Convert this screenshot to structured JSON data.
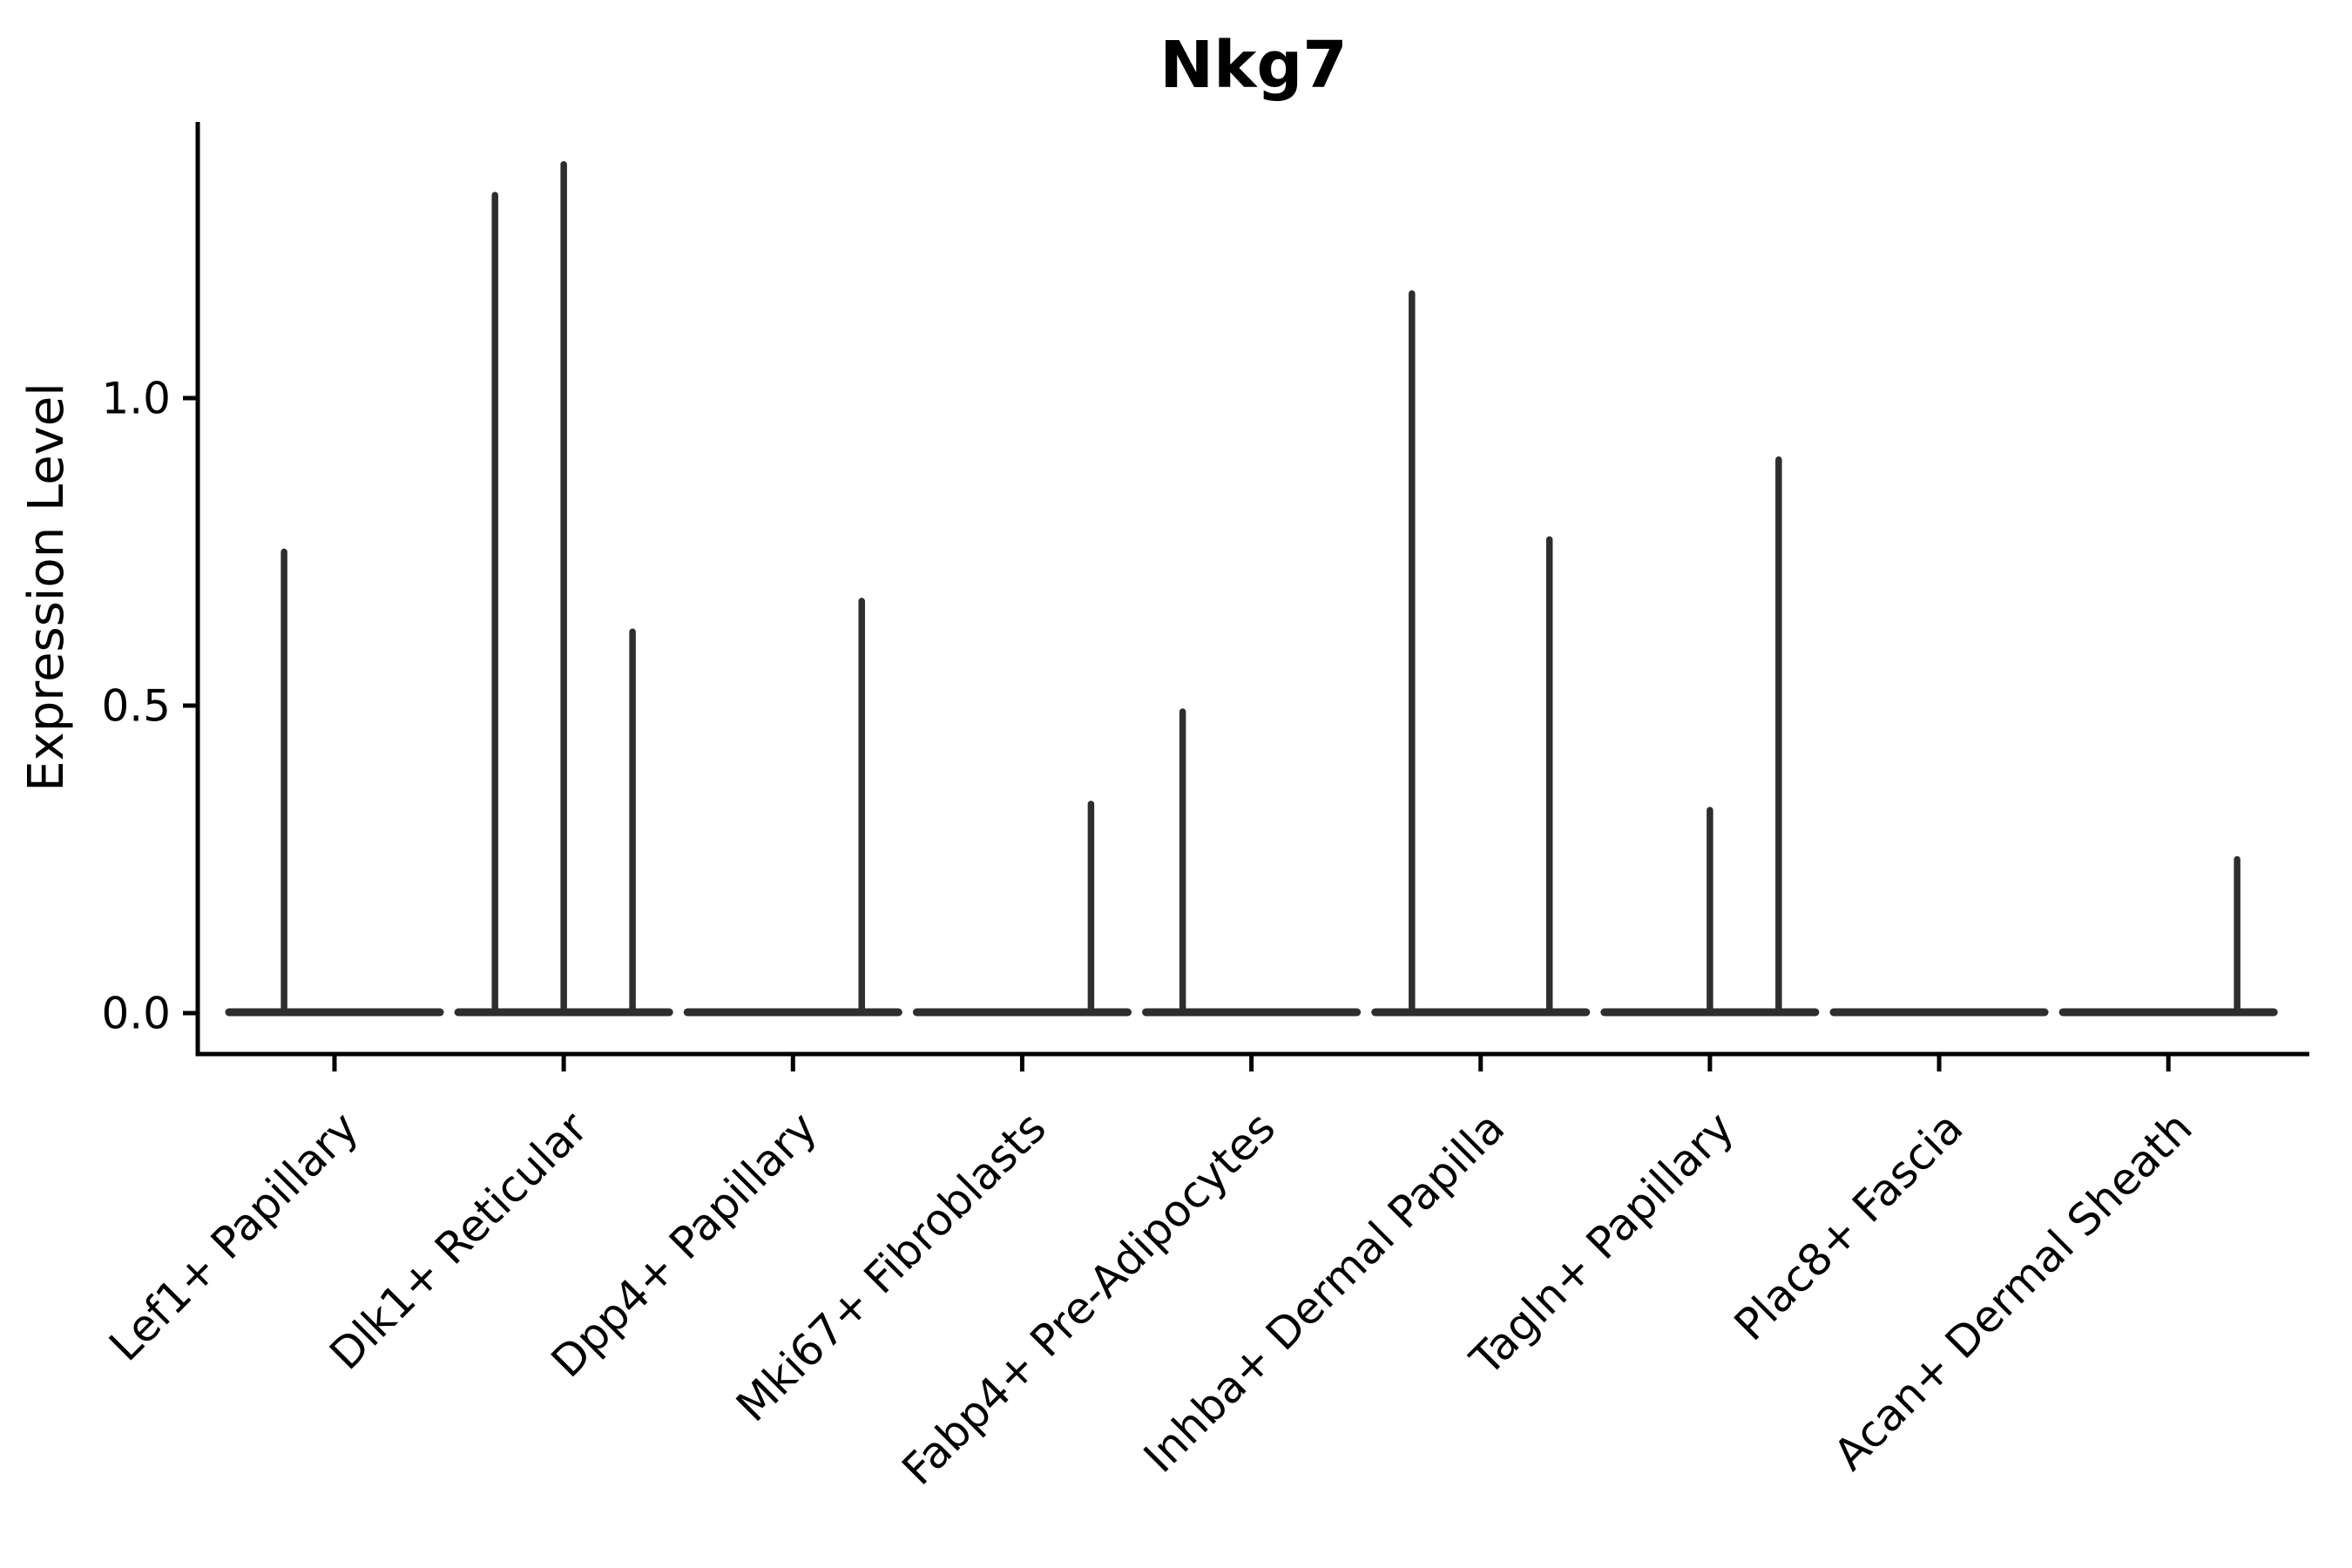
{
  "chart_data": {
    "type": "violin",
    "title": "Nkg7",
    "ylabel": "Expression Level",
    "xlabel": "",
    "grid": false,
    "legend": "none",
    "background_color": "#ffffff",
    "axis_color": "#000000",
    "violin_color": "#2e2e2e",
    "ylim": [
      -0.06,
      1.45
    ],
    "yticks": [
      {
        "value": 0.0,
        "label": "0.0"
      },
      {
        "value": 0.5,
        "label": "0.5"
      },
      {
        "value": 1.0,
        "label": "1.0"
      }
    ],
    "categories": [
      "Lef1+ Papillary",
      "Dlk1+ Reticular",
      "Dpp4+ Papillary",
      "Mki67+ Fibroblasts",
      "Fabp4+ Pre-Adipocytes",
      "Inhba+ Dermal Papilla",
      "Tagln+ Papillary",
      "Plac8+ Fascia",
      "Acan+ Dermal Sheath"
    ],
    "baseline_value": 0.0,
    "baseline_half_width": 0.46,
    "violins": [
      {
        "category": "Lef1+ Papillary",
        "spikes": [
          {
            "offset": -0.22,
            "max": 0.75
          }
        ]
      },
      {
        "category": "Dlk1+ Reticular",
        "spikes": [
          {
            "offset": -0.3,
            "max": 1.33
          },
          {
            "offset": 0.0,
            "max": 1.38
          },
          {
            "offset": 0.3,
            "max": 0.62
          }
        ]
      },
      {
        "category": "Dpp4+ Papillary",
        "spikes": [
          {
            "offset": 0.3,
            "max": 0.67
          }
        ]
      },
      {
        "category": "Mki67+ Fibroblasts",
        "spikes": [
          {
            "offset": 0.3,
            "max": 0.34
          }
        ]
      },
      {
        "category": "Fabp4+ Pre-Adipocytes",
        "spikes": [
          {
            "offset": -0.3,
            "max": 0.49
          }
        ]
      },
      {
        "category": "Inhba+ Dermal Papilla",
        "spikes": [
          {
            "offset": -0.3,
            "max": 1.17
          },
          {
            "offset": 0.3,
            "max": 0.77
          }
        ]
      },
      {
        "category": "Tagln+ Papillary",
        "spikes": [
          {
            "offset": 0.0,
            "max": 0.33
          },
          {
            "offset": 0.3,
            "max": 0.9
          }
        ]
      },
      {
        "category": "Plac8+ Fascia",
        "spikes": []
      },
      {
        "category": "Acan+ Dermal Sheath",
        "spikes": [
          {
            "offset": 0.3,
            "max": 0.25
          }
        ]
      }
    ]
  }
}
